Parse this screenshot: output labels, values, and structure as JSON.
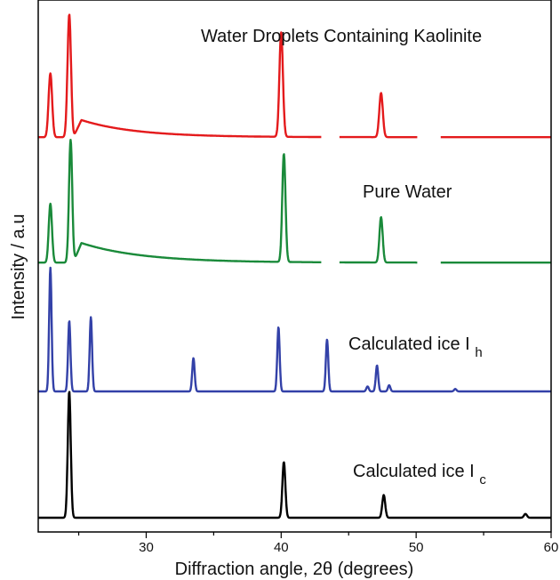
{
  "chart_data": {
    "type": "line",
    "xlabel": "Diffraction angle, 2θ (degrees)",
    "ylabel": "Intensity / a.u",
    "xlim": [
      22,
      60
    ],
    "x_ticks": [
      30,
      40,
      50,
      60
    ],
    "y_ticks_labeled": false,
    "grid": false,
    "series": [
      {
        "name": "Water Droplets Containing Kaolinite",
        "color": "#e41a1c",
        "baseline": 0.02,
        "gaps": [
          [
            43.0,
            44.3
          ],
          [
            50.1,
            51.8
          ]
        ],
        "shoulder": {
          "start": 24.6,
          "peak_x": 25.2,
          "height": 0.14,
          "decay": 4.0
        },
        "peaks": [
          {
            "x": 22.9,
            "height": 0.52
          },
          {
            "x": 24.3,
            "height": 1.0
          },
          {
            "x": 40.0,
            "height": 0.85
          },
          {
            "x": 47.4,
            "height": 0.36
          }
        ]
      },
      {
        "name": "Pure Water",
        "color": "#1a8a3a",
        "baseline": 0.02,
        "gaps": [
          [
            43.0,
            44.3
          ],
          [
            50.1,
            51.8
          ]
        ],
        "shoulder": {
          "start": 24.6,
          "peak_x": 25.2,
          "height": 0.16,
          "decay": 4.5
        },
        "peaks": [
          {
            "x": 22.9,
            "height": 0.48
          },
          {
            "x": 24.4,
            "height": 1.0
          },
          {
            "x": 40.2,
            "height": 0.88
          },
          {
            "x": 47.4,
            "height": 0.37
          }
        ]
      },
      {
        "name": "Calculated ice Ih",
        "color": "#3341a8",
        "baseline": 0.0,
        "peaks": [
          {
            "x": 22.9,
            "height": 1.0
          },
          {
            "x": 24.3,
            "height": 0.57
          },
          {
            "x": 25.9,
            "height": 0.6
          },
          {
            "x": 33.5,
            "height": 0.27
          },
          {
            "x": 39.8,
            "height": 0.52
          },
          {
            "x": 43.4,
            "height": 0.42
          },
          {
            "x": 46.4,
            "height": 0.04
          },
          {
            "x": 47.1,
            "height": 0.21
          },
          {
            "x": 48.0,
            "height": 0.05
          },
          {
            "x": 52.9,
            "height": 0.02
          }
        ]
      },
      {
        "name": "Calculated ice Ic",
        "color": "#000000",
        "baseline": 0.0,
        "peaks": [
          {
            "x": 24.3,
            "height": 1.0
          },
          {
            "x": 40.2,
            "height": 0.44
          },
          {
            "x": 47.6,
            "height": 0.18
          },
          {
            "x": 58.1,
            "height": 0.03
          }
        ]
      }
    ],
    "annotations": {
      "kaolinite": "Water Droplets Containing Kaolinite",
      "pure_water": "Pure Water",
      "ice_h_main": "Calculated ice I",
      "ice_h_sub": "h",
      "ice_c_main": "Calculated ice I",
      "ice_c_sub": "c"
    }
  }
}
